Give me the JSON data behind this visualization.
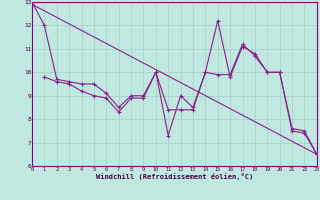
{
  "xlabel": "Windchill (Refroidissement éolien,°C)",
  "background_color": "#c0e8e0",
  "grid_color": "#a8d4cc",
  "line_color": "#882288",
  "x_range": [
    0,
    23
  ],
  "y_range": [
    6,
    13
  ],
  "trend_x": [
    0,
    23
  ],
  "trend_y": [
    12.9,
    6.5
  ],
  "series1_x": [
    0,
    1,
    2,
    3,
    4,
    5,
    6,
    7,
    8,
    9,
    10,
    11,
    12,
    13,
    14,
    15,
    16,
    17,
    18,
    19,
    20,
    21,
    22,
    23
  ],
  "series1_y": [
    13.0,
    12.0,
    9.7,
    9.6,
    9.5,
    9.5,
    9.1,
    8.5,
    9.0,
    9.0,
    10.0,
    7.3,
    9.0,
    8.5,
    10.0,
    12.2,
    9.8,
    11.1,
    10.8,
    10.0,
    10.0,
    7.6,
    7.5,
    6.5
  ],
  "series2_x": [
    1,
    2,
    3,
    4,
    5,
    6,
    7,
    8,
    9,
    10,
    11,
    12,
    13,
    14,
    15,
    16,
    17,
    18,
    19,
    20,
    21,
    22,
    23
  ],
  "series2_y": [
    9.8,
    9.6,
    9.5,
    9.2,
    9.0,
    8.9,
    8.3,
    8.9,
    8.9,
    10.0,
    8.4,
    8.4,
    8.4,
    10.0,
    9.9,
    9.9,
    11.2,
    10.7,
    10.0,
    10.0,
    7.5,
    7.4,
    6.5
  ]
}
